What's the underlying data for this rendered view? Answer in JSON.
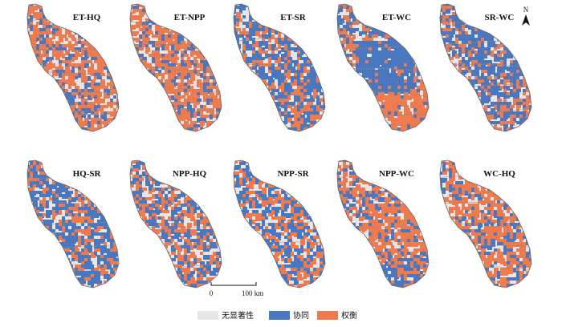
{
  "panels": [
    {
      "label": "ET-HQ",
      "pattern": "trade-heavy"
    },
    {
      "label": "ET-NPP",
      "pattern": "trade-heavy"
    },
    {
      "label": "ET-SR",
      "pattern": "mixed-syn"
    },
    {
      "label": "ET-WC",
      "pattern": "wc"
    },
    {
      "label": "SR-WC",
      "pattern": "mixed-syn"
    },
    {
      "label": "HQ-SR",
      "pattern": "mixed-syn"
    },
    {
      "label": "NPP-HQ",
      "pattern": "mixed"
    },
    {
      "label": "NPP-SR",
      "pattern": "mixed"
    },
    {
      "label": "NPP-WC",
      "pattern": "npp-wc"
    },
    {
      "label": "WC-HQ",
      "pattern": "trade-heavy"
    }
  ],
  "north_arrow": {
    "letter": "N"
  },
  "scale_bar": {
    "start_label": "0",
    "end_label": "100 km"
  },
  "legend": [
    {
      "label": "无显著性",
      "color": "#e6e6e6"
    },
    {
      "label": "协同",
      "color": "#4a78c0"
    },
    {
      "label": "权衡",
      "color": "#ef7a4e"
    }
  ],
  "colors": {
    "none": "#e6e6e6",
    "synergy": "#4a78c0",
    "tradeoff": "#ef7a4e",
    "boundary": "#8a8a8a"
  }
}
